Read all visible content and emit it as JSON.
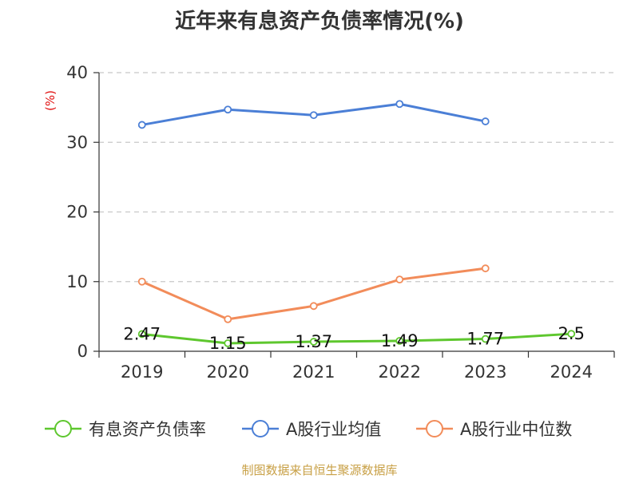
{
  "chart_data": {
    "type": "line",
    "title": "近年来有息资产负债率情况(%)",
    "ylabel": "(%)",
    "ylim": [
      0,
      40
    ],
    "yticks": [
      0,
      10,
      20,
      30,
      40
    ],
    "categories": [
      "2019",
      "2020",
      "2021",
      "2022",
      "2023",
      "2024"
    ],
    "grid": true,
    "legend_position": "bottom",
    "series": [
      {
        "name": "有息资产负债率",
        "color": "#5ec72e",
        "values": [
          2.47,
          1.15,
          1.37,
          1.49,
          1.77,
          2.5
        ],
        "labels": [
          "2.47",
          "1.15",
          "1.37",
          "1.49",
          "1.77",
          "2.5"
        ]
      },
      {
        "name": "A股行业均值",
        "color": "#4b7fd6",
        "values": [
          32.5,
          34.7,
          33.9,
          35.5,
          33.0,
          null
        ]
      },
      {
        "name": "A股行业中位数",
        "color": "#f28c5a",
        "values": [
          10.0,
          4.6,
          6.5,
          10.3,
          11.9,
          null
        ]
      }
    ]
  },
  "source": "制图数据来自恒生聚源数据库"
}
